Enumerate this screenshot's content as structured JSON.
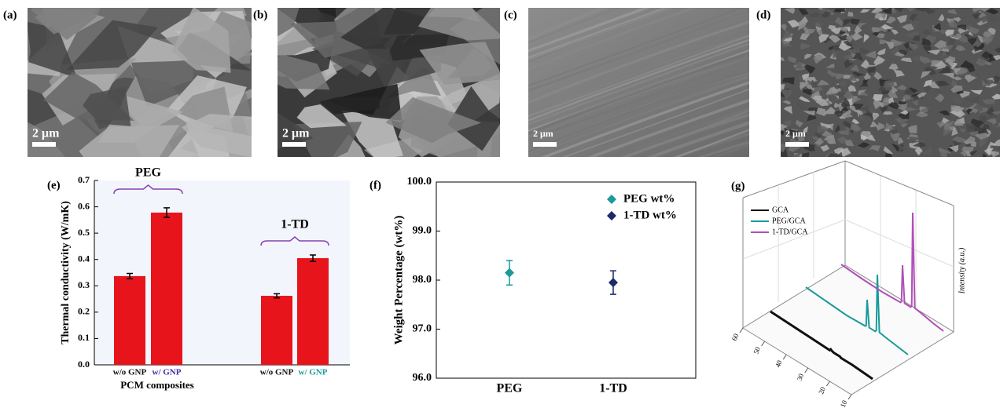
{
  "images": [
    {
      "label": "(a)",
      "scale_bar": "2 μm"
    },
    {
      "label": "(b)",
      "scale_bar": "2 μm"
    },
    {
      "label": "(c)",
      "scale_bar": "2 μm"
    },
    {
      "label": "(d)",
      "scale_bar": "2 μm"
    }
  ],
  "chart_data": [
    {
      "type": "bar",
      "panel": "(e)",
      "ylabel": "Thermal conductivity (W/mK)",
      "xlabel": "PCM composites",
      "categories": [
        "w/o GNP",
        "w/ GNP",
        "w/o GNP",
        "w/ GNP"
      ],
      "label_colors": [
        "#111111",
        "#3b2fa8",
        "#111111",
        "#1b9a9a"
      ],
      "groups": [
        "PEG",
        "1-TD"
      ],
      "group_color": "#8a3fb0",
      "values": [
        0.337,
        0.578,
        0.262,
        0.405
      ],
      "errors": [
        0.01,
        0.018,
        0.008,
        0.012
      ],
      "color": "#e8141b",
      "background": "#f2f6fc",
      "ylim": [
        0,
        0.7
      ],
      "yticks": [
        {
          "value": 0,
          "label": "0.0"
        },
        0.1,
        0.2,
        0.3,
        0.4,
        0.5,
        0.6,
        0.7
      ]
    },
    {
      "type": "scatter",
      "panel": "(f)",
      "ylabel": "Weight Percentage (wt%)",
      "categories": [
        "PEG",
        "1-TD"
      ],
      "series": [
        {
          "name": "PEG wt%",
          "color": "#1b9a9a",
          "values": [
            98.15,
            null
          ],
          "errors": [
            0.25,
            null
          ]
        },
        {
          "name": "1-TD wt%",
          "color": "#1c2a6b",
          "values": [
            null,
            97.95
          ],
          "errors": [
            null,
            0.24
          ]
        }
      ],
      "ylim": [
        96,
        100
      ],
      "yticks": [
        {
          "value": 96,
          "label": "96.0"
        },
        {
          "value": 97,
          "label": "97.0"
        },
        {
          "value": 98,
          "label": "98.0"
        },
        {
          "value": 99,
          "label": "99.0"
        },
        {
          "value": 100,
          "label": "100.0"
        }
      ],
      "legend": "upper-right"
    },
    {
      "type": "line3d",
      "panel": "(g)",
      "zlabel": "Intensity (a.u.)",
      "x": [
        10,
        15,
        20,
        24,
        25,
        25.5,
        26,
        29,
        30,
        30.5,
        31,
        40,
        50,
        60
      ],
      "series": [
        {
          "name": "GCA",
          "color": "#111111",
          "values": [
            0,
            1,
            2,
            2,
            2,
            2,
            3,
            3,
            4,
            5,
            3,
            4,
            5,
            6
          ]
        },
        {
          "name": "PEG/GCA",
          "color": "#1b9a9a",
          "values": [
            2,
            4,
            6,
            8,
            80,
            8,
            6,
            6,
            40,
            6,
            5,
            4,
            6,
            8
          ]
        },
        {
          "name": "1-TD/GCA",
          "color": "#b04fb8",
          "values": [
            3,
            5,
            8,
            10,
            130,
            10,
            8,
            8,
            55,
            8,
            6,
            5,
            6,
            8
          ]
        }
      ],
      "xlim": [
        10,
        60
      ],
      "xticks": [
        10,
        20,
        30,
        40,
        50,
        60
      ]
    }
  ]
}
